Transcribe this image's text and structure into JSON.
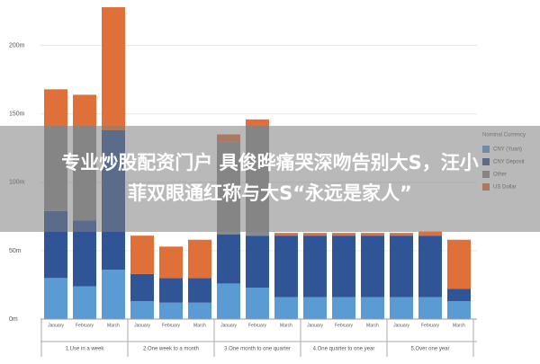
{
  "chart_data": {
    "type": "stacked_bar",
    "categories": [
      "January",
      "February",
      "March",
      "January",
      "February",
      "March",
      "January",
      "February",
      "March",
      "January",
      "February",
      "March",
      "January",
      "February",
      "March"
    ],
    "groups": [
      "1.Use in a week",
      "2.One week to a month",
      "3.One month to one quarter",
      "4.One quarter to one year",
      "5.Over one year"
    ],
    "legend_title": "Nominal Currency",
    "series": [
      {
        "name": "CNY (Yuan)",
        "color": "#5b9bd5",
        "values": [
          30,
          24,
          36,
          13,
          12,
          12,
          26,
          23,
          16,
          16,
          16,
          16,
          16,
          16,
          13
        ]
      },
      {
        "name": "CNY Deposit",
        "color": "#2f5597",
        "values": [
          49,
          48,
          102,
          20,
          18,
          18,
          36,
          38,
          45,
          45,
          45,
          45,
          45,
          45,
          9
        ]
      },
      {
        "name": "Other",
        "color": "#8c8c8c",
        "values": [
          62,
          69,
          null,
          null,
          null,
          null,
          68,
          80,
          null,
          null,
          null,
          null,
          null,
          null,
          null
        ]
      },
      {
        "name": "US Dollar",
        "color": "#e0703a",
        "values": [
          27,
          23,
          90,
          28,
          23,
          28,
          5,
          5,
          2,
          2,
          2,
          2,
          2,
          3,
          36
        ]
      }
    ],
    "ylim": [
      0,
      230
    ],
    "yticks": [
      {
        "value": 0,
        "label": "0m"
      },
      {
        "value": 50,
        "label": "50m"
      },
      {
        "value": 100,
        "label": "100m"
      },
      {
        "value": 150,
        "label": "150m"
      },
      {
        "value": 200,
        "label": "200m"
      }
    ],
    "grid": true
  },
  "overlay": {
    "lines": [
      "专业炒股配资门户 具俊晔痛哭深吻告别大S，汪小",
      "菲双眼通红称与大S“永远是家人”"
    ]
  }
}
